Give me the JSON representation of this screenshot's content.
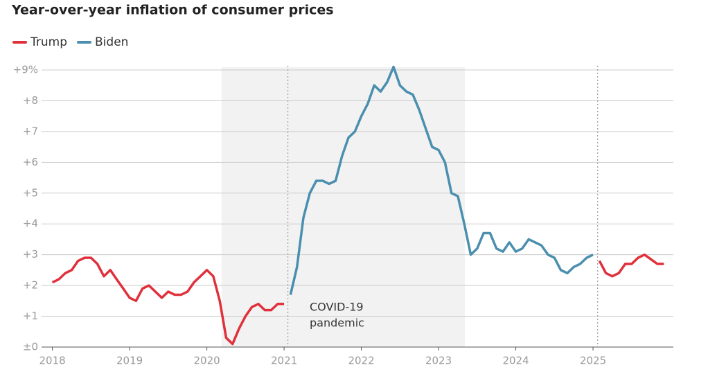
{
  "chart_data": {
    "type": "line",
    "title": "Year-over-year inflation of consumer prices",
    "x": [
      2018,
      2018.083,
      2018.167,
      2018.25,
      2018.333,
      2018.417,
      2018.5,
      2018.583,
      2018.667,
      2018.75,
      2018.833,
      2018.917,
      2019,
      2019.083,
      2019.167,
      2019.25,
      2019.333,
      2019.417,
      2019.5,
      2019.583,
      2019.667,
      2019.75,
      2019.833,
      2019.917,
      2020,
      2020.083,
      2020.167,
      2020.25,
      2020.333,
      2020.417,
      2020.5,
      2020.583,
      2020.667,
      2020.75,
      2020.833,
      2020.917,
      2021,
      2021.083,
      2021.167,
      2021.25,
      2021.333,
      2021.417,
      2021.5,
      2021.583,
      2021.667,
      2021.75,
      2021.833,
      2021.917,
      2022,
      2022.083,
      2022.167,
      2022.25,
      2022.333,
      2022.417,
      2022.5,
      2022.583,
      2022.667,
      2022.75,
      2022.833,
      2022.917,
      2023,
      2023.083,
      2023.167,
      2023.25,
      2023.333,
      2023.417,
      2023.5,
      2023.583,
      2023.667,
      2023.75,
      2023.833,
      2023.917,
      2024,
      2024.083,
      2024.167,
      2024.25,
      2024.333,
      2024.417,
      2024.5,
      2024.583,
      2024.667,
      2024.75,
      2024.833,
      2024.917,
      2025,
      2025.083,
      2025.167,
      2025.25,
      2025.333,
      2025.417,
      2025.5,
      2025.583,
      2025.667,
      2025.75,
      2025.833,
      2025.917
    ],
    "series": [
      {
        "name": "Trump",
        "color": "#e0303b",
        "values": [
          2.1,
          2.2,
          2.4,
          2.5,
          2.8,
          2.9,
          2.9,
          2.7,
          2.3,
          2.5,
          2.2,
          1.9,
          1.6,
          1.5,
          1.9,
          2.0,
          1.8,
          1.6,
          1.8,
          1.7,
          1.7,
          1.8,
          2.1,
          2.3,
          2.5,
          2.3,
          1.5,
          0.3,
          0.1,
          0.6,
          1.0,
          1.3,
          1.4,
          1.2,
          1.2,
          1.4,
          1.4,
          null,
          null,
          null,
          null,
          null,
          null,
          null,
          null,
          null,
          null,
          null,
          null,
          null,
          null,
          null,
          null,
          null,
          null,
          null,
          null,
          null,
          null,
          null,
          null,
          null,
          null,
          null,
          null,
          null,
          null,
          null,
          null,
          null,
          null,
          null,
          null,
          null,
          null,
          null,
          null,
          null,
          null,
          null,
          null,
          null,
          null,
          null,
          null,
          2.8,
          2.4,
          2.3,
          2.4,
          2.7,
          2.7,
          2.9,
          3.0,
          2.85,
          2.7,
          2.7
        ]
      },
      {
        "name": "Biden",
        "color": "#4a8fae",
        "values": [
          null,
          null,
          null,
          null,
          null,
          null,
          null,
          null,
          null,
          null,
          null,
          null,
          null,
          null,
          null,
          null,
          null,
          null,
          null,
          null,
          null,
          null,
          null,
          null,
          null,
          null,
          null,
          null,
          null,
          null,
          null,
          null,
          null,
          null,
          null,
          null,
          null,
          1.7,
          2.6,
          4.2,
          5.0,
          5.4,
          5.4,
          5.3,
          5.4,
          6.2,
          6.8,
          7.0,
          7.5,
          7.9,
          8.5,
          8.3,
          8.6,
          9.1,
          8.5,
          8.3,
          8.2,
          7.7,
          7.1,
          6.5,
          6.4,
          6.0,
          5.0,
          4.9,
          4.0,
          3.0,
          3.2,
          3.7,
          3.7,
          3.2,
          3.1,
          3.4,
          3.1,
          3.2,
          3.5,
          3.4,
          3.3,
          3.0,
          2.9,
          2.5,
          2.4,
          2.6,
          2.7,
          2.9,
          3.0,
          null,
          null,
          null,
          null,
          null,
          null,
          null,
          null,
          null,
          null,
          null
        ]
      }
    ],
    "xlim": [
      2017.86,
      2026.04
    ],
    "xticks": [
      2018,
      2019,
      2020,
      2021,
      2022,
      2023,
      2024,
      2025
    ],
    "ylim": [
      0,
      9
    ],
    "yticks": [
      {
        "value": 0,
        "label": "±0"
      },
      {
        "value": 1,
        "label": "+1"
      },
      {
        "value": 2,
        "label": "+2"
      },
      {
        "value": 3,
        "label": "+3"
      },
      {
        "value": 4,
        "label": "+4"
      },
      {
        "value": 5,
        "label": "+5"
      },
      {
        "value": 6,
        "label": "+6"
      },
      {
        "value": 7,
        "label": "+7"
      },
      {
        "value": 8,
        "label": "+8"
      },
      {
        "value": 9,
        "label": "+9%"
      }
    ],
    "grid": true,
    "shaded_period": [
      2020.19,
      2023.34
    ],
    "shaded_label": [
      "COVID-19",
      "pandemic"
    ],
    "dotted_lines": [
      2021.05,
      2025.06
    ]
  }
}
